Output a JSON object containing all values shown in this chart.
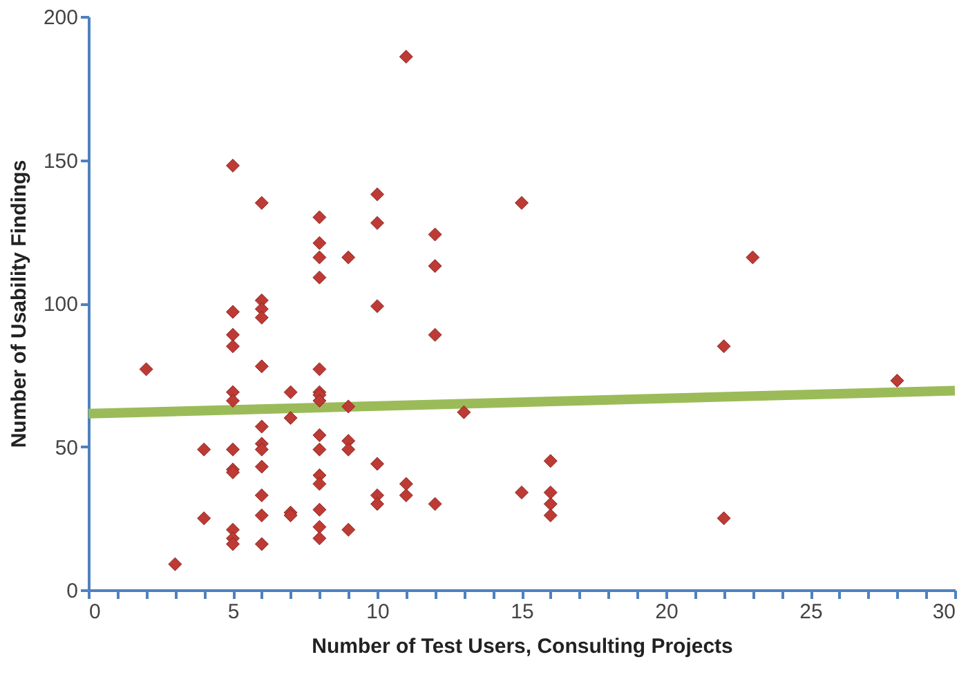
{
  "chart_data": {
    "type": "scatter",
    "xlabel": "Number of Test Users, Consulting Projects",
    "ylabel": "Number of Usability Findings",
    "xlim": [
      0,
      30
    ],
    "ylim": [
      0,
      200
    ],
    "xticks": [
      0,
      {
        "value": 1,
        "label": null
      },
      {
        "value": 2,
        "label": null
      },
      {
        "value": 3,
        "label": null
      },
      {
        "value": 4,
        "label": null
      },
      5,
      {
        "value": 6,
        "label": null
      },
      {
        "value": 7,
        "label": null
      },
      {
        "value": 8,
        "label": null
      },
      {
        "value": 9,
        "label": null
      },
      10,
      {
        "value": 11,
        "label": null
      },
      {
        "value": 12,
        "label": null
      },
      {
        "value": 13,
        "label": null
      },
      {
        "value": 14,
        "label": null
      },
      15,
      {
        "value": 16,
        "label": null
      },
      {
        "value": 17,
        "label": null
      },
      {
        "value": 18,
        "label": null
      },
      {
        "value": 19,
        "label": null
      },
      20,
      {
        "value": 21,
        "label": null
      },
      {
        "value": 22,
        "label": null
      },
      {
        "value": 23,
        "label": null
      },
      {
        "value": 24,
        "label": null
      },
      25,
      {
        "value": 26,
        "label": null
      },
      {
        "value": 27,
        "label": null
      },
      {
        "value": 28,
        "label": null
      },
      {
        "value": 29,
        "label": null
      },
      30
    ],
    "yticks": [
      0,
      50,
      100,
      150,
      200
    ],
    "grid": false,
    "legend": false,
    "series": [
      {
        "marker": "diamond",
        "color": "#be3a34",
        "x": [
          2,
          3,
          4,
          4,
          5,
          5,
          5,
          5,
          5,
          5,
          5,
          5,
          5,
          5,
          5,
          5,
          6,
          6,
          6,
          6,
          6,
          6,
          6,
          6,
          6,
          6,
          6,
          6,
          7,
          7,
          7,
          7,
          8,
          8,
          8,
          8,
          8,
          8,
          8,
          8,
          8,
          8,
          8,
          8,
          8,
          8,
          8,
          9,
          9,
          9,
          9,
          9,
          10,
          10,
          10,
          10,
          10,
          10,
          11,
          11,
          11,
          12,
          12,
          12,
          12,
          13,
          15,
          15,
          16,
          16,
          16,
          16,
          22,
          22,
          23,
          28
        ],
        "values": [
          77,
          9,
          49,
          25,
          148,
          97,
          89,
          85,
          69,
          66,
          49,
          42,
          41,
          21,
          18,
          16,
          135,
          101,
          98,
          95,
          78,
          57,
          51,
          49,
          43,
          33,
          26,
          16,
          69,
          60,
          27,
          26,
          130,
          121,
          116,
          109,
          77,
          69,
          68,
          66,
          54,
          49,
          40,
          37,
          28,
          22,
          18,
          116,
          64,
          52,
          49,
          21,
          138,
          128,
          99,
          44,
          33,
          30,
          186,
          37,
          33,
          124,
          113,
          89,
          30,
          62,
          135,
          34,
          45,
          34,
          30,
          26,
          85,
          25,
          116,
          73
        ]
      },
      {
        "type": "line",
        "line_style": "solid",
        "marker": "none",
        "color": "#9bbb59",
        "x": [
          0,
          30
        ],
        "values": [
          61.5,
          69.5
        ]
      }
    ]
  }
}
